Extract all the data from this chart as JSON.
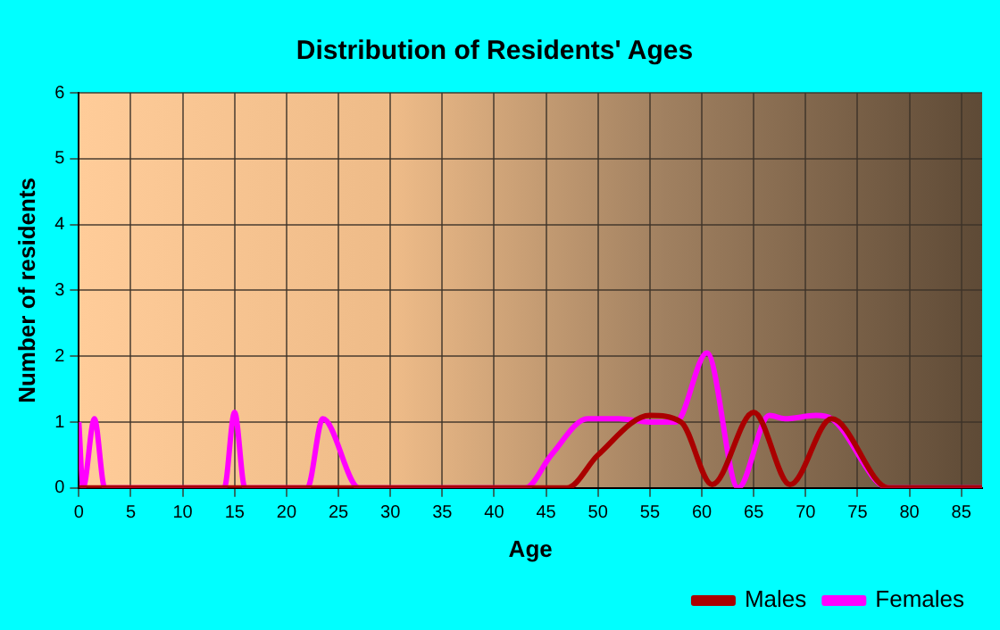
{
  "chart_data": {
    "type": "line",
    "title": "Distribution of Residents' Ages",
    "xlabel": "Age",
    "ylabel": "Number of residents",
    "xlim": [
      0,
      87
    ],
    "xticks": [
      0,
      5,
      10,
      15,
      20,
      25,
      30,
      35,
      40,
      45,
      50,
      55,
      60,
      65,
      70,
      75,
      80,
      85
    ],
    "ylim": [
      0,
      6
    ],
    "yticks": [
      0,
      1,
      2,
      3,
      4,
      5,
      6
    ],
    "grid": true,
    "legend": "bottom right",
    "marker": "none",
    "line_style": "solid",
    "series": [
      {
        "name": "Males",
        "color": "#aa0000",
        "x": [
          0,
          10,
          20,
          30,
          40,
          47,
          50,
          55,
          58,
          61,
          65,
          68.5,
          72.5,
          78,
          82,
          87
        ],
        "values": [
          0,
          0,
          0,
          0,
          0,
          0,
          0.5,
          1.1,
          1,
          0.05,
          1.15,
          0.05,
          1.05,
          0,
          0,
          0
        ]
      },
      {
        "name": "Females",
        "color": "#ff00ff",
        "x": [
          0,
          0.4,
          1.5,
          2.5,
          8,
          14,
          15,
          16,
          22,
          23.5,
          27,
          35,
          43,
          45.5,
          49,
          52,
          55,
          57.5,
          60.5,
          63.5,
          66.5,
          68,
          71,
          72.5,
          78,
          87
        ],
        "values": [
          1,
          0,
          1.05,
          0,
          0,
          0,
          1.15,
          0,
          0,
          1.05,
          0,
          0,
          0,
          0.5,
          1.05,
          1.05,
          1,
          1,
          2.05,
          0,
          1.1,
          1.05,
          1.1,
          1.05,
          0,
          0
        ]
      }
    ]
  }
}
